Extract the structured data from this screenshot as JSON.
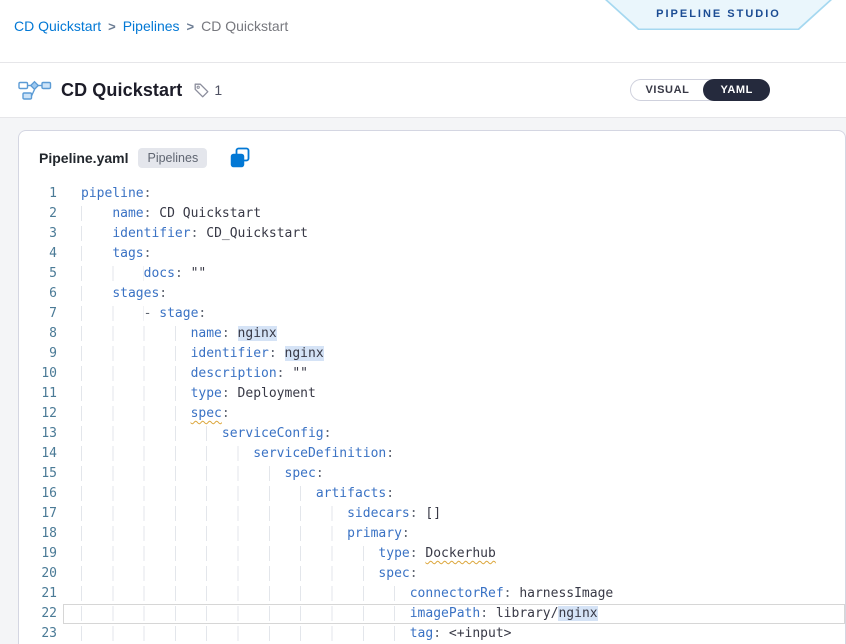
{
  "breadcrumb": {
    "separator": ">",
    "items": [
      {
        "label": "CD Quickstart",
        "link": true
      },
      {
        "label": "Pipelines",
        "link": true
      },
      {
        "label": "CD Quickstart",
        "link": false
      }
    ]
  },
  "banner": {
    "label": "PIPELINE STUDIO"
  },
  "header": {
    "title": "CD Quickstart",
    "tag_count": "1"
  },
  "view_toggle": {
    "options": [
      {
        "label": "VISUAL",
        "selected": false
      },
      {
        "label": "YAML",
        "selected": true
      }
    ]
  },
  "editor": {
    "file_name": "Pipeline.yaml",
    "badge": "Pipelines",
    "icons": [
      "copy-icon"
    ],
    "colors": {
      "accent": "#0278d5",
      "key": "#3a72c4",
      "value": "#383946",
      "punct": "#5f6571",
      "occurrence_highlight": "#d5e3f6",
      "warning_squiggle": "#dca63b",
      "line_number": "#4a7a96",
      "selected_pill": "#252a3d",
      "banner_fill": "#eaf6fc",
      "banner_border": "#a5d8f0"
    },
    "lines": [
      {
        "n": 1,
        "indent": 0,
        "tokens": [
          [
            "k",
            "pipeline"
          ],
          [
            "p",
            ":"
          ]
        ]
      },
      {
        "n": 2,
        "indent": 4,
        "tokens": [
          [
            "k",
            "name"
          ],
          [
            "p",
            ": "
          ],
          [
            "v",
            "CD Quickstart"
          ]
        ]
      },
      {
        "n": 3,
        "indent": 4,
        "tokens": [
          [
            "k",
            "identifier"
          ],
          [
            "p",
            ": "
          ],
          [
            "v",
            "CD_Quickstart"
          ]
        ]
      },
      {
        "n": 4,
        "indent": 4,
        "tokens": [
          [
            "k",
            "tags"
          ],
          [
            "p",
            ":"
          ]
        ]
      },
      {
        "n": 5,
        "indent": 8,
        "tokens": [
          [
            "k",
            "docs"
          ],
          [
            "p",
            ": "
          ],
          [
            "v",
            "\"\""
          ]
        ]
      },
      {
        "n": 6,
        "indent": 4,
        "tokens": [
          [
            "k",
            "stages"
          ],
          [
            "p",
            ":"
          ]
        ]
      },
      {
        "n": 7,
        "indent": 8,
        "tokens": [
          [
            "p",
            "- "
          ],
          [
            "k",
            "stage"
          ],
          [
            "p",
            ":"
          ]
        ]
      },
      {
        "n": 8,
        "indent": 14,
        "tokens": [
          [
            "k",
            "name"
          ],
          [
            "p",
            ": "
          ],
          [
            "vh",
            "nginx"
          ]
        ]
      },
      {
        "n": 9,
        "indent": 14,
        "tokens": [
          [
            "k",
            "identifier"
          ],
          [
            "p",
            ": "
          ],
          [
            "vh",
            "nginx"
          ]
        ]
      },
      {
        "n": 10,
        "indent": 14,
        "tokens": [
          [
            "k",
            "description"
          ],
          [
            "p",
            ": "
          ],
          [
            "v",
            "\"\""
          ]
        ]
      },
      {
        "n": 11,
        "indent": 14,
        "tokens": [
          [
            "k",
            "type"
          ],
          [
            "p",
            ": "
          ],
          [
            "v",
            "Deployment"
          ]
        ]
      },
      {
        "n": 12,
        "indent": 14,
        "tokens": [
          [
            "kw",
            "spec"
          ],
          [
            "p",
            ":"
          ]
        ]
      },
      {
        "n": 13,
        "indent": 18,
        "tokens": [
          [
            "k",
            "serviceConfig"
          ],
          [
            "p",
            ":"
          ]
        ]
      },
      {
        "n": 14,
        "indent": 22,
        "tokens": [
          [
            "k",
            "serviceDefinition"
          ],
          [
            "p",
            ":"
          ]
        ]
      },
      {
        "n": 15,
        "indent": 26,
        "tokens": [
          [
            "k",
            "spec"
          ],
          [
            "p",
            ":"
          ]
        ]
      },
      {
        "n": 16,
        "indent": 30,
        "tokens": [
          [
            "k",
            "artifacts"
          ],
          [
            "p",
            ":"
          ]
        ]
      },
      {
        "n": 17,
        "indent": 34,
        "tokens": [
          [
            "k",
            "sidecars"
          ],
          [
            "p",
            ": "
          ],
          [
            "v",
            "[]"
          ]
        ]
      },
      {
        "n": 18,
        "indent": 34,
        "tokens": [
          [
            "k",
            "primary"
          ],
          [
            "p",
            ":"
          ]
        ]
      },
      {
        "n": 19,
        "indent": 38,
        "tokens": [
          [
            "k",
            "type"
          ],
          [
            "p",
            ": "
          ],
          [
            "vw",
            "Dockerhub"
          ]
        ]
      },
      {
        "n": 20,
        "indent": 38,
        "tokens": [
          [
            "k",
            "spec"
          ],
          [
            "p",
            ":"
          ]
        ]
      },
      {
        "n": 21,
        "indent": 42,
        "tokens": [
          [
            "k",
            "connectorRef"
          ],
          [
            "p",
            ": "
          ],
          [
            "v",
            "harnessImage"
          ]
        ]
      },
      {
        "n": 22,
        "indent": 42,
        "current": true,
        "tokens": [
          [
            "k",
            "imagePath"
          ],
          [
            "p",
            ": "
          ],
          [
            "v",
            "library/"
          ],
          [
            "vh",
            "nginx"
          ]
        ]
      },
      {
        "n": 23,
        "indent": 42,
        "tokens": [
          [
            "k",
            "tag"
          ],
          [
            "p",
            ": "
          ],
          [
            "v",
            "<+input>"
          ]
        ]
      }
    ]
  }
}
